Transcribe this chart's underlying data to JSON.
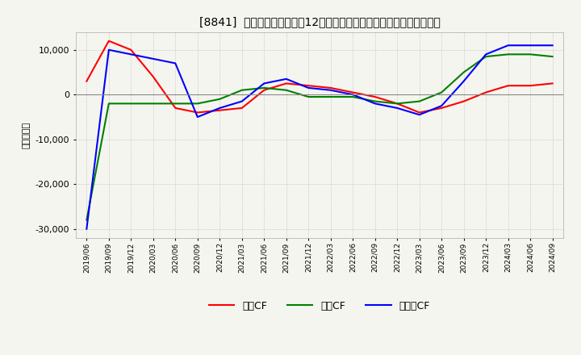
{
  "title": "[8841]  キャッシュフローの12か月移動合計の対前年同期増減額の推移",
  "ylabel": "（百万円）",
  "legend_labels": [
    "営業CF",
    "投資CF",
    "フリーCF"
  ],
  "colors": {
    "eigyo": "#ff0000",
    "toshi": "#008000",
    "free": "#0000ff"
  },
  "x_labels": [
    "2019/06",
    "2019/09",
    "2019/12",
    "2020/03",
    "2020/06",
    "2020/09",
    "2020/12",
    "2021/03",
    "2021/06",
    "2021/09",
    "2021/12",
    "2022/03",
    "2022/06",
    "2022/09",
    "2022/12",
    "2023/03",
    "2023/06",
    "2023/09",
    "2023/12",
    "2024/03",
    "2024/06",
    "2024/09"
  ],
  "eigyo_cf": [
    3000,
    12000,
    10000,
    4000,
    -3000,
    -4000,
    -3500,
    -3000,
    1000,
    2500,
    2000,
    1500,
    500,
    -500,
    -2000,
    -4000,
    -3000,
    -1500,
    500,
    2000,
    2000,
    2500
  ],
  "toshi_cf": [
    -28000,
    -2000,
    -2000,
    -2000,
    -2000,
    -2000,
    -1000,
    1000,
    1500,
    1000,
    -500,
    -500,
    -500,
    -1500,
    -2000,
    -1500,
    500,
    5000,
    8500,
    9000,
    9000,
    8500
  ],
  "free_cf": [
    -30000,
    10000,
    9000,
    8000,
    7000,
    -5000,
    -3000,
    -1500,
    2500,
    3500,
    1500,
    1000,
    0,
    -2000,
    -3000,
    -4500,
    -2500,
    3000,
    9000,
    11000,
    11000,
    11000
  ],
  "ylim": [
    -32000,
    14000
  ],
  "yticks": [
    10000,
    0,
    -10000,
    -20000,
    -30000
  ],
  "background": "#f5f5f0"
}
